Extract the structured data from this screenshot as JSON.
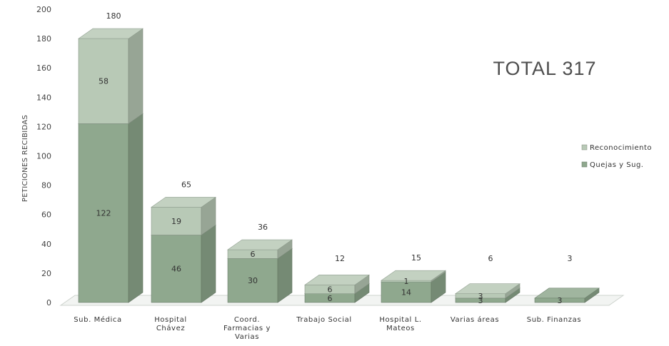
{
  "chart_data": {
    "type": "bar",
    "stacked": true,
    "three_d": true,
    "ylabel": "PETICIONES  RECIBIDAS",
    "ylim": [
      0,
      200
    ],
    "y_ticks": [
      0,
      20,
      40,
      60,
      80,
      100,
      120,
      140,
      160,
      180,
      200
    ],
    "categories": [
      [
        "Sub. Médica"
      ],
      [
        "Hospital",
        "Chávez"
      ],
      [
        "Coord.",
        "Farmacias y",
        "Varias"
      ],
      [
        "Trabajo Social"
      ],
      [
        "Hospital L.",
        "Mateos"
      ],
      [
        "Varias áreas"
      ],
      [
        "Sub. Finanzas"
      ]
    ],
    "series": [
      {
        "name": "Quejas y Sug.",
        "values": [
          122,
          46,
          30,
          6,
          14,
          3,
          3
        ],
        "color": "#8fa88e"
      },
      {
        "name": "Reconocimiento",
        "values": [
          58,
          19,
          6,
          6,
          1,
          3,
          0
        ],
        "color": "#b8c9b6"
      }
    ],
    "segment_labels": [
      [
        "122",
        "58"
      ],
      [
        "46",
        "19"
      ],
      [
        "30",
        "6"
      ],
      [
        "6",
        "6"
      ],
      [
        "14",
        "1"
      ],
      [
        "3",
        "3"
      ],
      [
        "3",
        ""
      ]
    ],
    "totals": [
      "180",
      "65",
      "36",
      "12",
      "15",
      "6",
      "3"
    ],
    "legend_order": [
      "Reconocimiento",
      "Quejas y Sug."
    ],
    "legend_position": "right",
    "annotation": "TOTAL 317"
  }
}
